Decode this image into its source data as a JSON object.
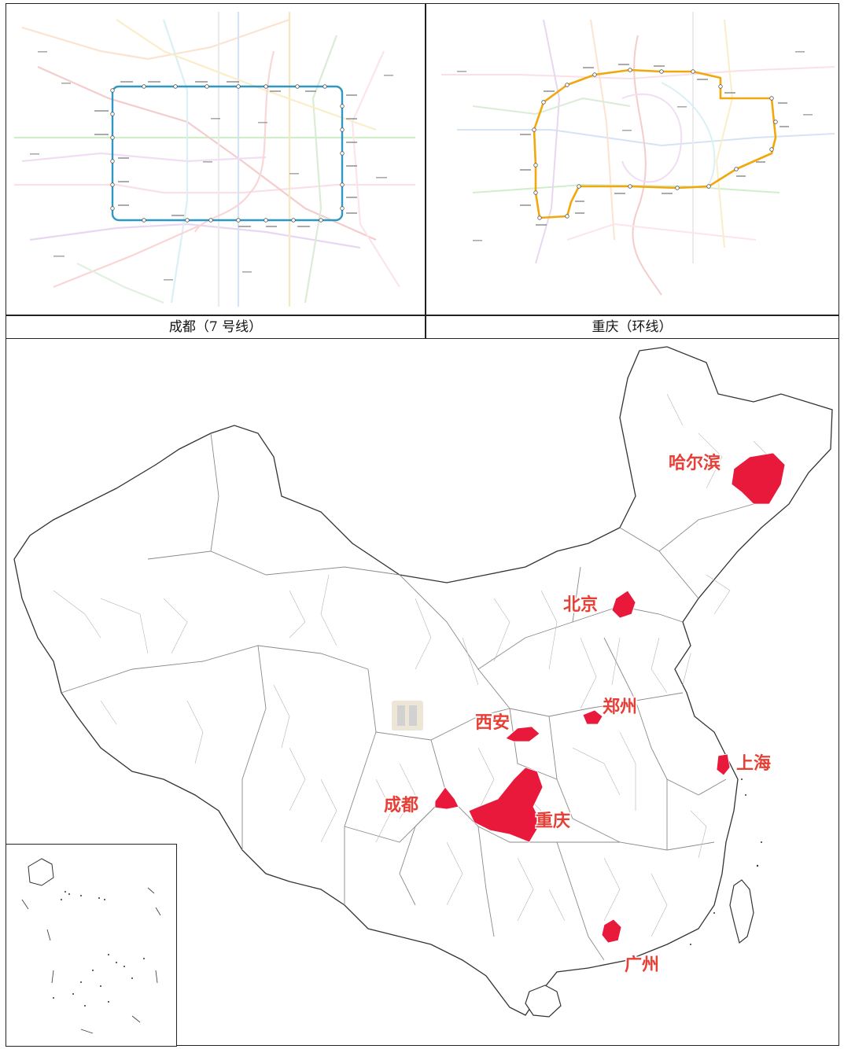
{
  "captions": {
    "left": "成都（7 号线）",
    "right": "重庆（环线）"
  },
  "colors": {
    "chengdu_line7": "#2f97c1",
    "chongqing_loop": "#f2a70d",
    "highlight": "#e8193a",
    "label": "#e73f35",
    "border": "#8a8a8a"
  },
  "cities": [
    {
      "name": "哈尔滨"
    },
    {
      "name": "北京"
    },
    {
      "name": "郑州"
    },
    {
      "name": "西安"
    },
    {
      "name": "上海"
    },
    {
      "name": "成都"
    },
    {
      "name": "重庆"
    },
    {
      "name": "广州"
    }
  ]
}
